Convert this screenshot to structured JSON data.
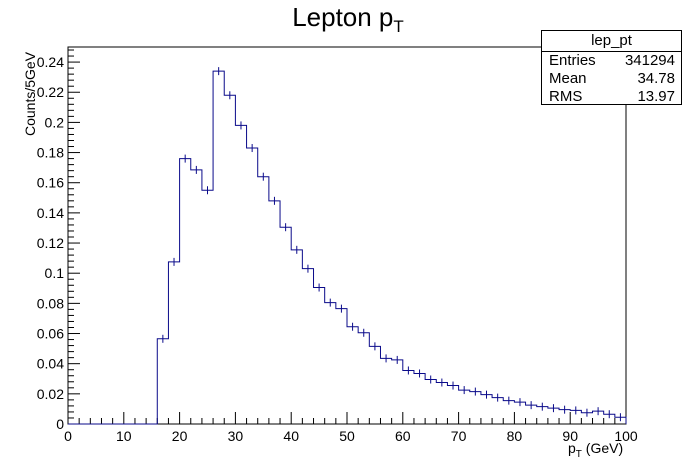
{
  "chart_data": {
    "type": "bar",
    "title_main": "Lepton p",
    "title_sub": "T",
    "xlabel_main": "p",
    "xlabel_sub": "T",
    "xlabel_rest": " (GeV)",
    "ylabel": "Counts/5GeV",
    "xlim": [
      0,
      100
    ],
    "ylim": [
      0,
      0.25
    ],
    "bin_width": 2,
    "x_ticks": [
      "0",
      "10",
      "20",
      "30",
      "40",
      "50",
      "60",
      "70",
      "80",
      "90",
      "100"
    ],
    "y_ticks": [
      "0",
      "0.02",
      "0.04",
      "0.06",
      "0.08",
      "0.1",
      "0.12",
      "0.14",
      "0.16",
      "0.18",
      "0.2",
      "0.22",
      "0.24"
    ],
    "line_color": "#0a0a8a",
    "bin_edges_start": 0,
    "values": [
      0,
      0,
      0,
      0,
      0,
      0,
      0,
      0,
      0.0565,
      0.1075,
      0.176,
      0.1685,
      0.155,
      0.234,
      0.218,
      0.198,
      0.183,
      0.164,
      0.148,
      0.1305,
      0.1155,
      0.103,
      0.0905,
      0.0805,
      0.0765,
      0.0645,
      0.0605,
      0.0515,
      0.0435,
      0.0425,
      0.0355,
      0.0335,
      0.0295,
      0.0275,
      0.0255,
      0.0225,
      0.0215,
      0.0195,
      0.0175,
      0.0155,
      0.0145,
      0.0125,
      0.0115,
      0.0105,
      0.0095,
      0.009,
      0.0075,
      0.0085,
      0.0065,
      0.0045
    ]
  },
  "stats": {
    "name": "lep_pt",
    "entries_label": "Entries",
    "entries_value": "341294",
    "mean_label": "Mean",
    "mean_value": "34.78",
    "rms_label": "RMS",
    "rms_value": "13.97"
  }
}
